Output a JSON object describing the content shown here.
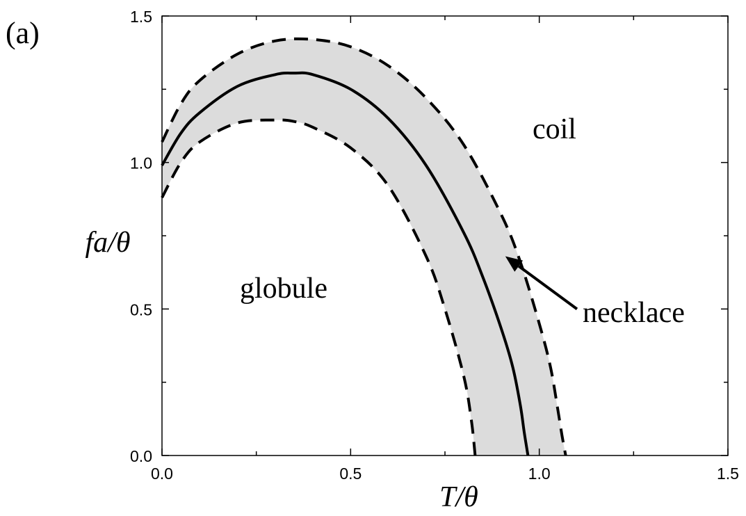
{
  "chart_data": {
    "type": "line",
    "panel_label": "(a)",
    "xlabel": "T/θ",
    "ylabel": "fa/θ",
    "xlim": [
      0,
      1.5
    ],
    "ylim": [
      0,
      1.5
    ],
    "x_ticks": [
      0.0,
      0.5,
      1.0,
      1.5
    ],
    "x_tick_labels": [
      "0.0",
      "0.5",
      "1.0",
      "1.5"
    ],
    "y_ticks": [
      0.0,
      0.5,
      1.0,
      1.5
    ],
    "y_tick_labels": [
      "0.0",
      "0.5",
      "1.0",
      "1.5"
    ],
    "minor_ticks": {
      "x": [
        0.25,
        0.75,
        1.25
      ],
      "y": [
        0.25,
        0.75,
        1.25
      ]
    },
    "grid": false,
    "shaded_region": {
      "between": [
        "upper boundary",
        "lower boundary"
      ],
      "color": "#dcdcdc"
    },
    "series": [
      {
        "style": "dashed",
        "color": "#000000",
        "x": [
          0.0,
          0.05,
          0.1,
          0.2,
          0.3,
          0.4,
          0.5,
          0.6,
          0.7,
          0.8,
          0.9,
          0.95,
          1.0,
          1.03,
          1.05,
          1.06,
          1.07
        ],
        "y": [
          1.07,
          1.2,
          1.28,
          1.37,
          1.415,
          1.42,
          1.395,
          1.33,
          1.22,
          1.06,
          0.82,
          0.66,
          0.45,
          0.3,
          0.15,
          0.07,
          0.0
        ]
      },
      {
        "style": "solid",
        "color": "#000000",
        "x": [
          0.0,
          0.05,
          0.1,
          0.2,
          0.3,
          0.35,
          0.4,
          0.5,
          0.6,
          0.7,
          0.8,
          0.85,
          0.9,
          0.93,
          0.95,
          0.96,
          0.97
        ],
        "y": [
          0.99,
          1.1,
          1.17,
          1.26,
          1.3,
          1.305,
          1.3,
          1.25,
          1.15,
          0.99,
          0.76,
          0.61,
          0.43,
          0.3,
          0.17,
          0.08,
          0.0
        ]
      },
      {
        "style": "dashed",
        "color": "#000000",
        "x": [
          0.0,
          0.05,
          0.1,
          0.2,
          0.3,
          0.35,
          0.4,
          0.5,
          0.6,
          0.7,
          0.75,
          0.8,
          0.82,
          0.83
        ],
        "y": [
          0.88,
          1.0,
          1.07,
          1.135,
          1.145,
          1.14,
          1.12,
          1.05,
          0.92,
          0.68,
          0.5,
          0.27,
          0.12,
          0.0
        ]
      }
    ],
    "annotations": [
      {
        "text": "coil",
        "x": 1.03,
        "y": 1.1
      },
      {
        "text": "globule",
        "x": 0.3,
        "y": 0.56
      },
      {
        "text": "necklace",
        "x": 1.23,
        "y": 0.45,
        "arrow_from": [
          1.1,
          0.5
        ],
        "arrow_to": [
          0.91,
          0.68
        ]
      }
    ]
  }
}
